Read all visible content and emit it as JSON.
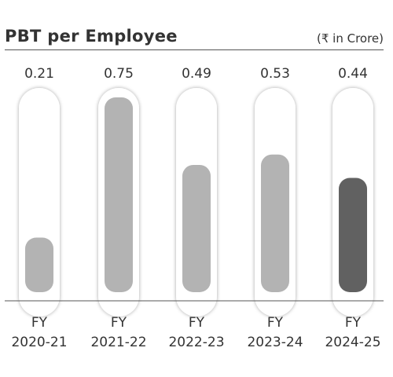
{
  "header": {
    "title": "PBT per Employee",
    "unit": "(₹ in Crore)"
  },
  "chart_data": {
    "type": "bar",
    "title": "PBT per Employee",
    "unit": "(₹ in Crore)",
    "categories": [
      "FY 2020-21",
      "FY 2021-22",
      "FY 2022-23",
      "FY 2023-24",
      "FY 2024-25"
    ],
    "category_lines": [
      [
        "FY",
        "2020-21"
      ],
      [
        "FY",
        "2021-22"
      ],
      [
        "FY",
        "2022-23"
      ],
      [
        "FY",
        "2023-24"
      ],
      [
        "FY",
        "2024-25"
      ]
    ],
    "values": [
      0.21,
      0.75,
      0.49,
      0.53,
      0.44
    ],
    "value_labels": [
      "0.21",
      "0.75",
      "0.49",
      "0.53",
      "0.44"
    ],
    "bar_colors": [
      "#b3b3b3",
      "#b3b3b3",
      "#b3b3b3",
      "#b3b3b3",
      "#616161"
    ],
    "track_color": "#ffffff",
    "legend": "none",
    "grid": false
  }
}
